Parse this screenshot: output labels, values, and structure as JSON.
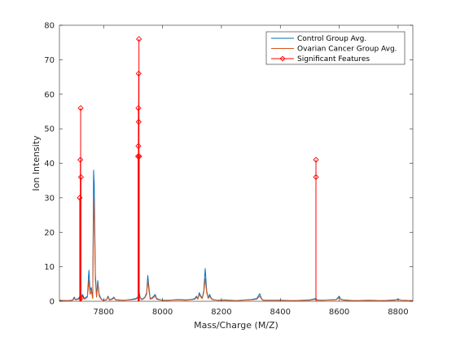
{
  "chart_data": {
    "type": "line",
    "title": "",
    "xlabel": "Mass/Charge (M/Z)",
    "ylabel": "Ion Intensity",
    "xlim": [
      7650,
      8850
    ],
    "ylim": [
      0,
      80
    ],
    "xticks": [
      7800,
      8000,
      8200,
      8400,
      8600,
      8800
    ],
    "yticks": [
      0,
      10,
      20,
      30,
      40,
      50,
      60,
      70,
      80
    ],
    "grid": false,
    "legend_position": "top-right",
    "series": [
      {
        "name": "Control Group Avg.",
        "color": "#0072BD",
        "x": [
          7650,
          7680,
          7695,
          7700,
          7705,
          7715,
          7720,
          7724,
          7728,
          7735,
          7745,
          7750,
          7754,
          7758,
          7763,
          7766,
          7768,
          7772,
          7776,
          7780,
          7785,
          7790,
          7794,
          7800,
          7810,
          7815,
          7820,
          7830,
          7835,
          7840,
          7850,
          7870,
          7890,
          7910,
          7916,
          7920,
          7924,
          7930,
          7940,
          7946,
          7950,
          7954,
          7958,
          7965,
          7975,
          7980,
          7990,
          8000,
          8020,
          8050,
          8080,
          8100,
          8110,
          8115,
          8120,
          8125,
          8130,
          8135,
          8140,
          8145,
          8150,
          8155,
          8160,
          8165,
          8170,
          8190,
          8210,
          8250,
          8300,
          8320,
          8330,
          8335,
          8340,
          8350,
          8400,
          8450,
          8500,
          8520,
          8525,
          8540,
          8590,
          8600,
          8605,
          8615,
          8650,
          8700,
          8750,
          8790,
          8800,
          8810,
          8850
        ],
        "y": [
          0.3,
          0.2,
          0.4,
          1.2,
          0.5,
          0.8,
          1.5,
          0.8,
          2,
          0.8,
          1.5,
          9,
          3,
          4,
          1,
          38,
          34,
          8,
          1.5,
          6,
          2,
          1,
          0.5,
          0.3,
          0.5,
          1.5,
          0.4,
          0.8,
          1.2,
          0.5,
          0.4,
          0.3,
          0.5,
          0.8,
          1.2,
          3,
          1.2,
          0.5,
          1.2,
          2.5,
          7.5,
          4,
          0.8,
          1,
          2,
          0.8,
          0.5,
          0.3,
          0.3,
          0.5,
          0.4,
          0.6,
          0.8,
          1.5,
          0.8,
          2.5,
          1.5,
          1,
          3,
          9.5,
          3,
          1,
          2,
          1,
          0.5,
          0.3,
          0.4,
          0.2,
          0.5,
          0.8,
          2.2,
          1,
          0.4,
          0.3,
          0.3,
          0.2,
          0.4,
          0.8,
          0.4,
          0.3,
          0.5,
          1.5,
          0.6,
          0.4,
          0.2,
          0.3,
          0.2,
          0.4,
          0.6,
          0.3,
          0.2
        ]
      },
      {
        "name": "Ovarian Cancer Group Avg.",
        "color": "#D95319",
        "x": [
          7650,
          7680,
          7695,
          7700,
          7705,
          7715,
          7720,
          7724,
          7728,
          7735,
          7745,
          7750,
          7754,
          7758,
          7763,
          7766,
          7768,
          7772,
          7776,
          7780,
          7785,
          7790,
          7794,
          7800,
          7810,
          7815,
          7820,
          7830,
          7835,
          7840,
          7850,
          7870,
          7890,
          7910,
          7916,
          7920,
          7924,
          7930,
          7940,
          7946,
          7950,
          7954,
          7958,
          7965,
          7975,
          7980,
          7990,
          8000,
          8020,
          8050,
          8080,
          8100,
          8110,
          8115,
          8120,
          8125,
          8130,
          8135,
          8140,
          8145,
          8150,
          8155,
          8160,
          8165,
          8170,
          8190,
          8210,
          8250,
          8300,
          8320,
          8330,
          8335,
          8340,
          8350,
          8400,
          8450,
          8500,
          8520,
          8525,
          8540,
          8590,
          8600,
          8605,
          8615,
          8650,
          8700,
          8750,
          8790,
          8800,
          8810,
          8850
        ],
        "y": [
          0.2,
          0.2,
          0.3,
          0.8,
          0.4,
          0.6,
          1,
          0.6,
          1.5,
          0.6,
          1.2,
          6,
          2,
          3,
          0.8,
          30,
          25,
          6,
          1.2,
          5,
          1.5,
          0.8,
          0.4,
          0.3,
          0.4,
          1.2,
          0.3,
          0.6,
          1,
          0.4,
          0.3,
          0.3,
          0.4,
          0.6,
          1,
          2,
          1,
          0.4,
          1,
          2,
          6,
          3,
          0.6,
          0.8,
          1.5,
          0.6,
          0.4,
          0.3,
          0.3,
          0.4,
          0.3,
          0.5,
          0.6,
          1.2,
          0.6,
          2,
          1.2,
          0.8,
          2.5,
          6.5,
          2.5,
          0.8,
          1.5,
          0.8,
          0.4,
          0.3,
          0.3,
          0.2,
          0.4,
          0.6,
          1.5,
          0.8,
          0.3,
          0.3,
          0.3,
          0.2,
          0.3,
          0.6,
          0.3,
          0.3,
          0.4,
          1.2,
          0.5,
          0.3,
          0.2,
          0.3,
          0.2,
          0.3,
          0.5,
          0.3,
          0.2
        ]
      },
      {
        "name": "Significant Features",
        "color": "#FF0000",
        "style": "stem",
        "marker": "diamond",
        "stems": [
          {
            "x": 7719,
            "y": [
              30
            ]
          },
          {
            "x": 7721,
            "y": [
              41
            ]
          },
          {
            "x": 7722,
            "y": [
              56
            ]
          },
          {
            "x": 7723,
            "y": [
              36
            ]
          },
          {
            "x": 7724,
            "y": [
              1
            ]
          },
          {
            "x": 7917,
            "y": [
              42
            ]
          },
          {
            "x": 7918,
            "y": [
              45,
              56
            ]
          },
          {
            "x": 7919,
            "y": [
              52,
              66
            ]
          },
          {
            "x": 7920,
            "y": [
              76
            ]
          },
          {
            "x": 7921,
            "y": [
              42
            ]
          },
          {
            "x": 8521,
            "y": [
              41,
              36
            ]
          }
        ]
      }
    ]
  }
}
